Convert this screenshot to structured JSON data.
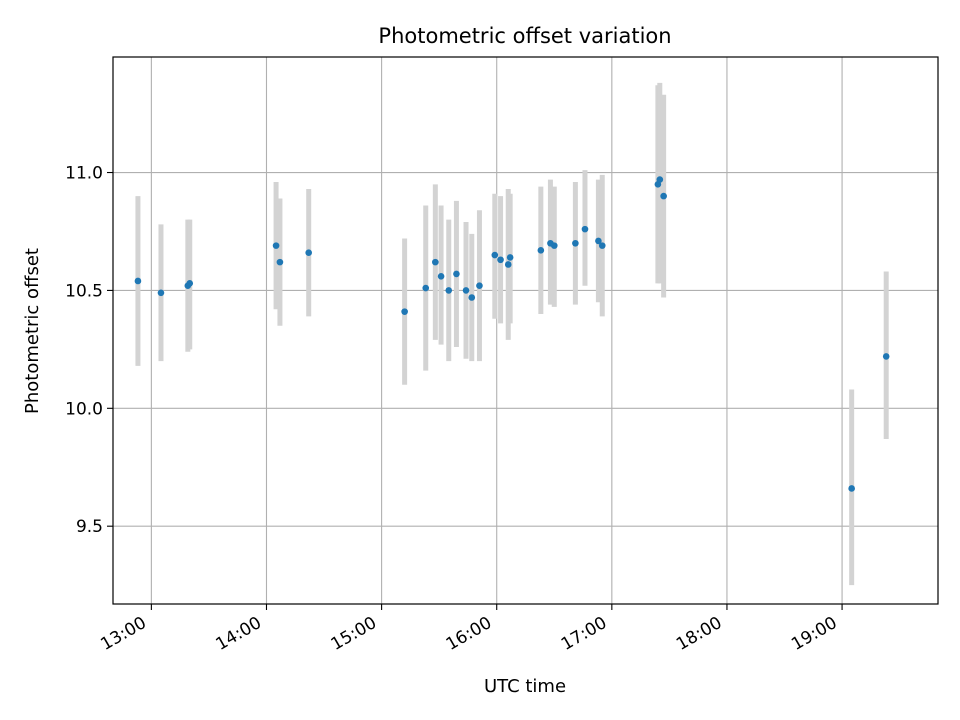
{
  "chart_data": {
    "type": "scatter",
    "title": "Photometric offset variation",
    "xlabel": "UTC time",
    "ylabel": "Photometric offset",
    "x_ticks": [
      "13:00",
      "14:00",
      "15:00",
      "16:00",
      "17:00",
      "18:00",
      "19:00"
    ],
    "y_ticks": [
      "9.5",
      "10.0",
      "10.5",
      "11.0"
    ],
    "xlim": [
      "12:40",
      "19:50"
    ],
    "ylim": [
      9.17,
      11.49
    ],
    "grid": true,
    "colors": {
      "point": "#1f77b4",
      "errorbar": "#d3d3d3",
      "grid": "#b0b0b0",
      "axes": "#000000"
    },
    "points": [
      {
        "x": "12:53",
        "y": 10.54,
        "lo": 10.18,
        "hi": 10.9
      },
      {
        "x": "13:05",
        "y": 10.49,
        "lo": 10.2,
        "hi": 10.78
      },
      {
        "x": "13:19",
        "y": 10.52,
        "lo": 10.24,
        "hi": 10.8
      },
      {
        "x": "13:20",
        "y": 10.53,
        "lo": 10.25,
        "hi": 10.8
      },
      {
        "x": "14:05",
        "y": 10.69,
        "lo": 10.42,
        "hi": 10.96
      },
      {
        "x": "14:07",
        "y": 10.62,
        "lo": 10.35,
        "hi": 10.89
      },
      {
        "x": "14:22",
        "y": 10.66,
        "lo": 10.39,
        "hi": 10.93
      },
      {
        "x": "15:12",
        "y": 10.41,
        "lo": 10.1,
        "hi": 10.72
      },
      {
        "x": "15:23",
        "y": 10.51,
        "lo": 10.16,
        "hi": 10.86
      },
      {
        "x": "15:28",
        "y": 10.62,
        "lo": 10.29,
        "hi": 10.95
      },
      {
        "x": "15:31",
        "y": 10.56,
        "lo": 10.27,
        "hi": 10.86
      },
      {
        "x": "15:35",
        "y": 10.5,
        "lo": 10.2,
        "hi": 10.8
      },
      {
        "x": "15:39",
        "y": 10.57,
        "lo": 10.26,
        "hi": 10.88
      },
      {
        "x": "15:44",
        "y": 10.5,
        "lo": 10.21,
        "hi": 10.79
      },
      {
        "x": "15:47",
        "y": 10.47,
        "lo": 10.2,
        "hi": 10.74
      },
      {
        "x": "15:51",
        "y": 10.52,
        "lo": 10.2,
        "hi": 10.84
      },
      {
        "x": "15:59",
        "y": 10.65,
        "lo": 10.38,
        "hi": 10.91
      },
      {
        "x": "16:02",
        "y": 10.63,
        "lo": 10.36,
        "hi": 10.9
      },
      {
        "x": "16:06",
        "y": 10.61,
        "lo": 10.29,
        "hi": 10.93
      },
      {
        "x": "16:07",
        "y": 10.64,
        "lo": 10.36,
        "hi": 10.91
      },
      {
        "x": "16:23",
        "y": 10.67,
        "lo": 10.4,
        "hi": 10.94
      },
      {
        "x": "16:28",
        "y": 10.7,
        "lo": 10.44,
        "hi": 10.97
      },
      {
        "x": "16:30",
        "y": 10.69,
        "lo": 10.43,
        "hi": 10.94
      },
      {
        "x": "16:41",
        "y": 10.7,
        "lo": 10.44,
        "hi": 10.96
      },
      {
        "x": "16:46",
        "y": 10.76,
        "lo": 10.52,
        "hi": 11.01
      },
      {
        "x": "16:53",
        "y": 10.71,
        "lo": 10.45,
        "hi": 10.97
      },
      {
        "x": "16:55",
        "y": 10.69,
        "lo": 10.39,
        "hi": 10.99
      },
      {
        "x": "17:24",
        "y": 10.95,
        "lo": 10.53,
        "hi": 11.37
      },
      {
        "x": "17:25",
        "y": 10.97,
        "lo": 10.53,
        "hi": 11.38
      },
      {
        "x": "17:27",
        "y": 10.9,
        "lo": 10.47,
        "hi": 11.33
      },
      {
        "x": "19:05",
        "y": 9.66,
        "lo": 9.25,
        "hi": 10.08
      },
      {
        "x": "19:23",
        "y": 10.22,
        "lo": 9.87,
        "hi": 10.58
      }
    ]
  }
}
